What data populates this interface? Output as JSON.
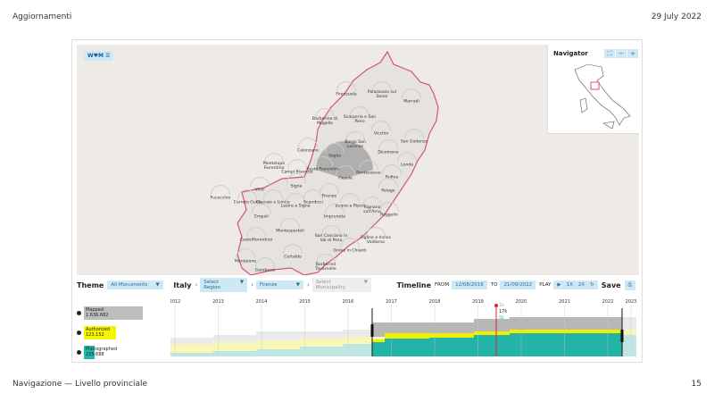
{
  "header": {
    "title": "Aggiornamenti",
    "date": "29 July 2022"
  },
  "footer": {
    "section": "Navigazione — Livello provinciale",
    "page": "15"
  },
  "map": {
    "logo": "W♥M ☰",
    "boundary_color": "#d4547a",
    "places": [
      "Firenzuola",
      "Palazzuolo sul Senio",
      "Marradi",
      "Barberino di Mugello",
      "Scarperia e San Piero",
      "Vicchio",
      "San Godenzo",
      "Borgo San Lorenzo",
      "Dicomano",
      "Calenzano",
      "Vaglia",
      "Montelupo Fiorentino",
      "Campi Bisenzio",
      "Sesto Fiorentino",
      "Fiesole",
      "Pontassieve",
      "Londa",
      "Rufina",
      "Signa",
      "Vinci",
      "Fucecchio",
      "Cerreto Guidi",
      "Capraia e Limite",
      "Lastra a Signa",
      "Scandicci",
      "Firenze",
      "Bagno a Ripoli",
      "Rignano sull'Arno",
      "Pelago",
      "Reggello",
      "Empoli",
      "Impruneta",
      "Montespertoli",
      "San Casciano in Val di Pesa",
      "Castelfiorentino",
      "Figline e Incisa Valdarno",
      "Greve in Chianti",
      "Certaldo",
      "Montaione",
      "Gambassi",
      "Barberino Tavarnelle"
    ]
  },
  "navigator": {
    "title": "Navigator",
    "buttons": [
      "⛶",
      "−",
      "+"
    ]
  },
  "toolbar": {
    "theme_label": "Theme",
    "theme_value": "All Monuments",
    "country": "Italy",
    "region_placeholder": "Select Region",
    "province": "Firenze",
    "municipality_placeholder": "Select Municipality",
    "timeline_label": "Timeline",
    "from_label": "FROM",
    "from_date": "12/08/2016",
    "to_label": "TO",
    "to_date": "21/09/2022",
    "play_label": "PLAY",
    "speed1": "1X",
    "speed2": "2X",
    "save_label": "Save"
  },
  "legend": [
    {
      "label": "Mapped",
      "value": "1.636.682",
      "color": "#bdbdbd"
    },
    {
      "label": "Authorized",
      "value": "123.152",
      "color": "#f5f500"
    },
    {
      "label": "Photographed",
      "value": "235.688",
      "color": "#20b8a8"
    }
  ],
  "timeline": {
    "years": [
      "2012",
      "2013",
      "2014",
      "2015",
      "2016",
      "2017",
      "2018",
      "2019",
      "2020",
      "2021",
      "2022",
      "2023"
    ],
    "cursor_values": [
      "1k",
      "17k",
      "5k"
    ],
    "cursor_color": "#e0203c"
  }
}
